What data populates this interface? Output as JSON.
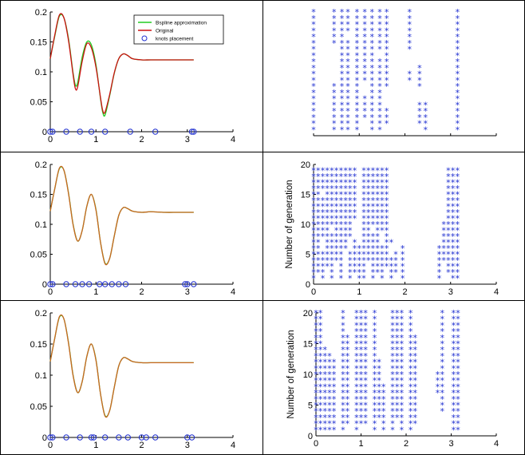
{
  "chart_data": [
    {
      "id": "top-left",
      "type": "line",
      "xlim": [
        0,
        4
      ],
      "ylim": [
        0,
        0.2
      ],
      "xticks": [
        "0",
        "1",
        "2",
        "3",
        "4"
      ],
      "yticks": [
        "0",
        "0.05",
        "0.1",
        "0.15",
        "0.2"
      ],
      "x": [
        0.0,
        0.1,
        0.2,
        0.3,
        0.4,
        0.5,
        0.55,
        0.6,
        0.7,
        0.8,
        0.9,
        1.0,
        1.1,
        1.15,
        1.2,
        1.3,
        1.4,
        1.5,
        1.6,
        1.7,
        1.8,
        2.0,
        2.2,
        2.5,
        2.8,
        3.14
      ],
      "series": [
        {
          "name": "Bspline approximation",
          "color": "#22cc22",
          "values": [
            0.122,
            0.16,
            0.193,
            0.19,
            0.155,
            0.098,
            0.078,
            0.082,
            0.125,
            0.15,
            0.145,
            0.112,
            0.055,
            0.032,
            0.028,
            0.06,
            0.097,
            0.122,
            0.13,
            0.127,
            0.122,
            0.12,
            0.12,
            0.12,
            0.12,
            0.12
          ]
        },
        {
          "name": "Original",
          "color": "#cc1111",
          "values": [
            0.122,
            0.162,
            0.195,
            0.19,
            0.152,
            0.095,
            0.072,
            0.075,
            0.118,
            0.147,
            0.14,
            0.108,
            0.057,
            0.035,
            0.033,
            0.062,
            0.098,
            0.122,
            0.13,
            0.127,
            0.122,
            0.12,
            0.12,
            0.12,
            0.12,
            0.12
          ]
        }
      ],
      "knots": {
        "name": "knots placement",
        "color": "#1f2fd0",
        "x": [
          0.0,
          0.05,
          0.35,
          0.65,
          0.9,
          1.2,
          1.75,
          2.3,
          3.1,
          3.14
        ]
      },
      "legend": {
        "position": "top-right",
        "entries": [
          "Bspline approximation",
          "Original",
          "knots placement"
        ]
      }
    },
    {
      "id": "top-right",
      "type": "scatter",
      "marker": "*",
      "xlim": [
        0,
        4
      ],
      "ylim": [
        0,
        20
      ],
      "xticks": [],
      "yticks": [],
      "columns": [
        {
          "x": 0.0,
          "levels": [
            [
              1,
              20
            ]
          ]
        },
        {
          "x": 0.45,
          "levels": [
            [
              1,
              8
            ],
            [
              15,
              20
            ]
          ]
        },
        {
          "x": 0.62,
          "levels": [
            [
              1,
              20
            ]
          ]
        },
        {
          "x": 0.75,
          "levels": [
            [
              1,
              15
            ],
            [
              17,
              20
            ]
          ]
        },
        {
          "x": 0.95,
          "levels": [
            [
              1,
              20
            ]
          ]
        },
        {
          "x": 1.12,
          "levels": [
            [
              3,
              6
            ],
            [
              9,
              20
            ]
          ]
        },
        {
          "x": 1.28,
          "levels": [
            [
              1,
              20
            ]
          ]
        },
        {
          "x": 1.45,
          "levels": [
            [
              1,
              12
            ],
            [
              14,
              20
            ]
          ]
        },
        {
          "x": 1.6,
          "levels": [
            [
              2,
              4
            ],
            [
              8,
              20
            ]
          ]
        },
        {
          "x": 2.1,
          "levels": [
            [
              9,
              10
            ],
            [
              14,
              20
            ]
          ]
        },
        {
          "x": 2.32,
          "levels": [
            [
              2,
              5
            ],
            [
              8,
              11
            ]
          ]
        },
        {
          "x": 2.45,
          "levels": [
            [
              1,
              5
            ]
          ]
        },
        {
          "x": 3.15,
          "levels": [
            [
              1,
              20
            ]
          ]
        }
      ]
    },
    {
      "id": "middle-left",
      "type": "line",
      "xlim": [
        0,
        4
      ],
      "ylim": [
        0,
        0.2
      ],
      "xticks": [
        "0",
        "1",
        "2",
        "3",
        "4"
      ],
      "yticks": [
        "0",
        "0.05",
        "0.1",
        "0.15",
        "0.2"
      ],
      "x": [
        0.0,
        0.1,
        0.2,
        0.3,
        0.4,
        0.5,
        0.6,
        0.7,
        0.8,
        0.9,
        1.0,
        1.1,
        1.2,
        1.3,
        1.4,
        1.5,
        1.6,
        1.7,
        1.8,
        2.0,
        2.2,
        2.5,
        2.8,
        3.14
      ],
      "series": [
        {
          "name": "Bspline approximation",
          "color": "#22cc22",
          "values": [
            0.122,
            0.16,
            0.193,
            0.19,
            0.152,
            0.1,
            0.072,
            0.09,
            0.13,
            0.15,
            0.125,
            0.07,
            0.035,
            0.043,
            0.08,
            0.115,
            0.128,
            0.126,
            0.122,
            0.12,
            0.121,
            0.12,
            0.12,
            0.12
          ]
        },
        {
          "name": "Original",
          "color": "#cc6622",
          "values": [
            0.122,
            0.16,
            0.194,
            0.19,
            0.151,
            0.099,
            0.072,
            0.09,
            0.13,
            0.15,
            0.124,
            0.07,
            0.034,
            0.043,
            0.08,
            0.115,
            0.128,
            0.126,
            0.122,
            0.12,
            0.121,
            0.12,
            0.12,
            0.12
          ]
        }
      ],
      "knots": {
        "name": "knots placement",
        "color": "#1f2fd0",
        "x": [
          0.0,
          0.05,
          0.35,
          0.55,
          0.7,
          0.85,
          1.08,
          1.2,
          1.35,
          1.5,
          1.65,
          2.95,
          3.0,
          3.14
        ]
      }
    },
    {
      "id": "middle-right",
      "type": "scatter",
      "marker": "*",
      "xlim": [
        0,
        4
      ],
      "ylim": [
        0,
        20
      ],
      "xticks": [
        "0",
        "1",
        "2",
        "3",
        "4"
      ],
      "yticks": [
        "0",
        "5",
        "10",
        "15",
        "20"
      ],
      "ylabel": "Number of generation",
      "columns": [
        {
          "x": 0.0,
          "levels": [
            [
              1,
              19
            ]
          ]
        },
        {
          "x": 0.1,
          "levels": [
            [
              2,
              19
            ]
          ]
        },
        {
          "x": 0.2,
          "levels": [
            [
              1,
              5
            ],
            [
              8,
              14
            ],
            [
              16,
              19
            ]
          ]
        },
        {
          "x": 0.3,
          "levels": [
            [
              3,
              19
            ]
          ]
        },
        {
          "x": 0.4,
          "levels": [
            [
              1,
              8
            ],
            [
              10,
              19
            ]
          ]
        },
        {
          "x": 0.5,
          "levels": [
            [
              4,
              19
            ]
          ]
        },
        {
          "x": 0.6,
          "levels": [
            [
              1,
              19
            ]
          ]
        },
        {
          "x": 0.7,
          "levels": [
            [
              6,
              19
            ]
          ]
        },
        {
          "x": 0.8,
          "levels": [
            [
              1,
              5
            ],
            [
              8,
              19
            ]
          ]
        },
        {
          "x": 0.9,
          "levels": [
            [
              2,
              7
            ],
            [
              11,
              19
            ]
          ]
        },
        {
          "x": 1.0,
          "levels": [
            [
              1,
              6
            ]
          ]
        },
        {
          "x": 1.1,
          "levels": [
            [
              1,
              19
            ]
          ]
        },
        {
          "x": 1.2,
          "levels": [
            [
              4,
              19
            ]
          ]
        },
        {
          "x": 1.3,
          "levels": [
            [
              1,
              8
            ],
            [
              10,
              19
            ]
          ]
        },
        {
          "x": 1.4,
          "levels": [
            [
              2,
              19
            ]
          ]
        },
        {
          "x": 1.5,
          "levels": [
            [
              1,
              6
            ],
            [
              9,
              19
            ]
          ]
        },
        {
          "x": 1.6,
          "levels": [
            [
              3,
              19
            ]
          ]
        },
        {
          "x": 1.7,
          "levels": [
            [
              1,
              4
            ],
            [
              7,
              7
            ]
          ]
        },
        {
          "x": 1.8,
          "levels": [
            [
              2,
              5
            ]
          ]
        },
        {
          "x": 1.95,
          "levels": [
            [
              1,
              6
            ]
          ]
        },
        {
          "x": 2.75,
          "levels": [
            [
              1,
              6
            ]
          ]
        },
        {
          "x": 2.85,
          "levels": [
            [
              4,
              10
            ]
          ]
        },
        {
          "x": 2.95,
          "levels": [
            [
              2,
              19
            ]
          ]
        },
        {
          "x": 3.05,
          "levels": [
            [
              1,
              19
            ]
          ]
        },
        {
          "x": 3.15,
          "levels": [
            [
              1,
              19
            ]
          ]
        }
      ]
    },
    {
      "id": "bottom-left",
      "type": "line",
      "xlim": [
        0,
        4
      ],
      "ylim": [
        0,
        0.2
      ],
      "xticks": [
        "0",
        "1",
        "2",
        "3",
        "4"
      ],
      "yticks": [
        "0",
        "0.05",
        "0.1",
        "0.15",
        "0.2"
      ],
      "x": [
        0.0,
        0.1,
        0.2,
        0.3,
        0.4,
        0.5,
        0.6,
        0.7,
        0.8,
        0.9,
        1.0,
        1.1,
        1.2,
        1.3,
        1.4,
        1.5,
        1.6,
        1.7,
        1.8,
        2.0,
        2.2,
        2.5,
        2.8,
        3.14
      ],
      "series": [
        {
          "name": "Bspline approximation",
          "color": "#22cc22",
          "values": [
            0.122,
            0.16,
            0.193,
            0.19,
            0.152,
            0.1,
            0.072,
            0.09,
            0.13,
            0.15,
            0.125,
            0.07,
            0.035,
            0.043,
            0.08,
            0.115,
            0.128,
            0.126,
            0.122,
            0.12,
            0.12,
            0.12,
            0.12,
            0.12
          ]
        },
        {
          "name": "Original",
          "color": "#cc6622",
          "values": [
            0.122,
            0.16,
            0.194,
            0.19,
            0.151,
            0.099,
            0.072,
            0.09,
            0.13,
            0.15,
            0.124,
            0.07,
            0.034,
            0.043,
            0.08,
            0.115,
            0.128,
            0.126,
            0.122,
            0.12,
            0.12,
            0.12,
            0.12,
            0.12
          ]
        }
      ],
      "knots": {
        "name": "knots placement",
        "color": "#1f2fd0",
        "x": [
          0.0,
          0.05,
          0.35,
          0.65,
          0.9,
          0.95,
          1.2,
          1.5,
          1.7,
          2.0,
          2.1,
          2.3,
          3.0,
          3.1
        ]
      }
    },
    {
      "id": "bottom-right",
      "type": "scatter",
      "marker": "*",
      "xlim": [
        0,
        4
      ],
      "ylim": [
        0,
        20
      ],
      "xticks": [
        "0",
        "1",
        "2",
        "3",
        "4"
      ],
      "yticks": [
        "0",
        "5",
        "10",
        "15",
        "20"
      ],
      "ylabel": "Number of generation",
      "columns": [
        {
          "x": 0.0,
          "levels": [
            [
              1,
              20
            ]
          ]
        },
        {
          "x": 0.1,
          "levels": [
            [
              1,
              20
            ]
          ]
        },
        {
          "x": 0.2,
          "levels": [
            [
              1,
              14
            ]
          ]
        },
        {
          "x": 0.3,
          "levels": [
            [
              1,
              13
            ]
          ]
        },
        {
          "x": 0.4,
          "levels": [
            [
              1,
              12
            ]
          ]
        },
        {
          "x": 0.6,
          "levels": [
            [
              1,
              20
            ]
          ]
        },
        {
          "x": 0.7,
          "levels": [
            [
              2,
              16
            ]
          ]
        },
        {
          "x": 0.9,
          "levels": [
            [
              1,
              20
            ]
          ]
        },
        {
          "x": 1.0,
          "levels": [
            [
              2,
              20
            ]
          ]
        },
        {
          "x": 1.1,
          "levels": [
            [
              2,
              20
            ]
          ]
        },
        {
          "x": 1.3,
          "levels": [
            [
              1,
              20
            ]
          ]
        },
        {
          "x": 1.4,
          "levels": [
            [
              3,
              12
            ]
          ]
        },
        {
          "x": 1.5,
          "levels": [
            [
              1,
              8
            ]
          ]
        },
        {
          "x": 1.7,
          "levels": [
            [
              1,
              20
            ]
          ]
        },
        {
          "x": 1.8,
          "levels": [
            [
              3,
              20
            ]
          ]
        },
        {
          "x": 1.9,
          "levels": [
            [
              1,
              20
            ]
          ]
        },
        {
          "x": 2.1,
          "levels": [
            [
              1,
              20
            ]
          ]
        },
        {
          "x": 2.2,
          "levels": [
            [
              2,
              16
            ]
          ]
        },
        {
          "x": 2.7,
          "levels": [
            [
              7,
              10
            ]
          ]
        },
        {
          "x": 2.8,
          "levels": [
            [
              4,
              20
            ]
          ]
        },
        {
          "x": 3.05,
          "levels": [
            [
              1,
              20
            ]
          ]
        },
        {
          "x": 3.15,
          "levels": [
            [
              1,
              20
            ]
          ]
        }
      ]
    }
  ]
}
